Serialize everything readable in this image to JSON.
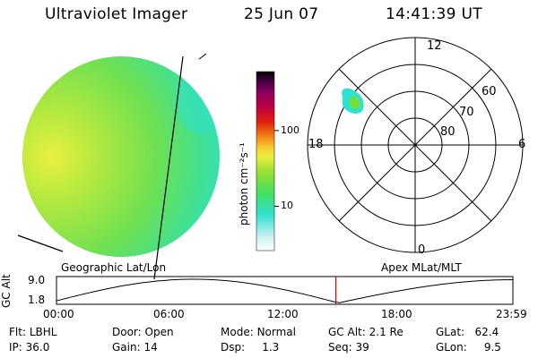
{
  "header": {
    "instrument": "Ultraviolet Imager",
    "date": "25 Jun 07",
    "time": "14:41:39 UT"
  },
  "colorbar": {
    "unit_label": "photon cm⁻²s⁻¹",
    "ticks": [
      {
        "label": "100",
        "value": 100
      },
      {
        "label": "10",
        "value": 10
      }
    ],
    "scale": "log",
    "colors": [
      "#ffffff",
      "#c8f0f0",
      "#30e0d0",
      "#40e060",
      "#a0e030",
      "#e8f040",
      "#f8c830",
      "#f08010",
      "#e02010",
      "#c00040",
      "#900060",
      "#400040",
      "#000000"
    ]
  },
  "polar_plot": {
    "mlt_labels": [
      {
        "label": "12",
        "mlt": 12
      },
      {
        "label": "18",
        "mlt": 18
      },
      {
        "label": "6",
        "mlt": 6
      },
      {
        "label": "0",
        "mlt": 0
      }
    ],
    "lat_labels": [
      {
        "label": "60",
        "mlat": 60
      },
      {
        "label": "70",
        "mlat": 70
      },
      {
        "label": "80",
        "mlat": 80
      }
    ]
  },
  "timeline": {
    "left_label": "Geographic Lat/Lon",
    "right_label": "Apex MLat/MLT",
    "y_axis_label": "GC Alt",
    "y_ticks": [
      "9.0",
      "1.8"
    ],
    "x_ticks": [
      "00:00",
      "06:00",
      "12:00",
      "18:00",
      "23:59"
    ],
    "marker_time_hours": 14.69,
    "marker_color": "#e00000"
  },
  "info": {
    "filter": {
      "label": "Flt:",
      "value": "LBHL"
    },
    "ip": {
      "label": "IP:",
      "value": "36.0"
    },
    "door": {
      "label": "Door:",
      "value": "Open"
    },
    "gain": {
      "label": "Gain:",
      "value": "14"
    },
    "mode": {
      "label": "Mode:",
      "value": "Normal"
    },
    "dsp": {
      "label": "Dsp:",
      "value": "1.3"
    },
    "gc_alt": {
      "label": "GC Alt:",
      "value": "2.1 Re"
    },
    "seq": {
      "label": "Seq:",
      "value": "39"
    },
    "glat": {
      "label": "GLat:",
      "value": "62.4"
    },
    "glon": {
      "label": "GLon:",
      "value": "9.5"
    }
  }
}
